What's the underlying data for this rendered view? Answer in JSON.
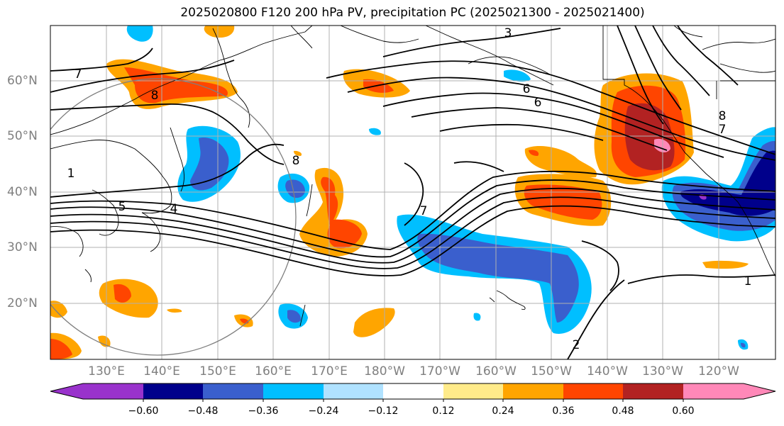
{
  "title": "2025020800 F120 200 hPa PV, precipitation PC (2025021300 - 2025021400)",
  "lat_labels": [
    "60°N",
    "50°N",
    "40°N",
    "30°N",
    "20°N"
  ],
  "lon_labels": [
    "130°E",
    "140°E",
    "150°E",
    "160°E",
    "170°E",
    "180°W",
    "170°W",
    "160°W",
    "150°W",
    "140°W",
    "130°W",
    "120°W"
  ],
  "pv_contour_labels": [
    "3",
    "7",
    "8",
    "6",
    "6",
    "7",
    "8",
    "8",
    "7",
    "5",
    "4",
    "1",
    "1",
    "2"
  ],
  "colorbar": {
    "ticks": [
      "−0.60",
      "−0.48",
      "−0.36",
      "−0.24",
      "−0.12",
      "0.12",
      "0.24",
      "0.36",
      "0.48",
      "0.60"
    ],
    "colors": [
      "#9932cc",
      "#00008b",
      "#3a5fcd",
      "#00bfff",
      "#b0e2ff",
      "#ffffff",
      "#ffeb8a",
      "#ffa500",
      "#ff4500",
      "#b22222",
      "#ff88b8"
    ]
  }
}
